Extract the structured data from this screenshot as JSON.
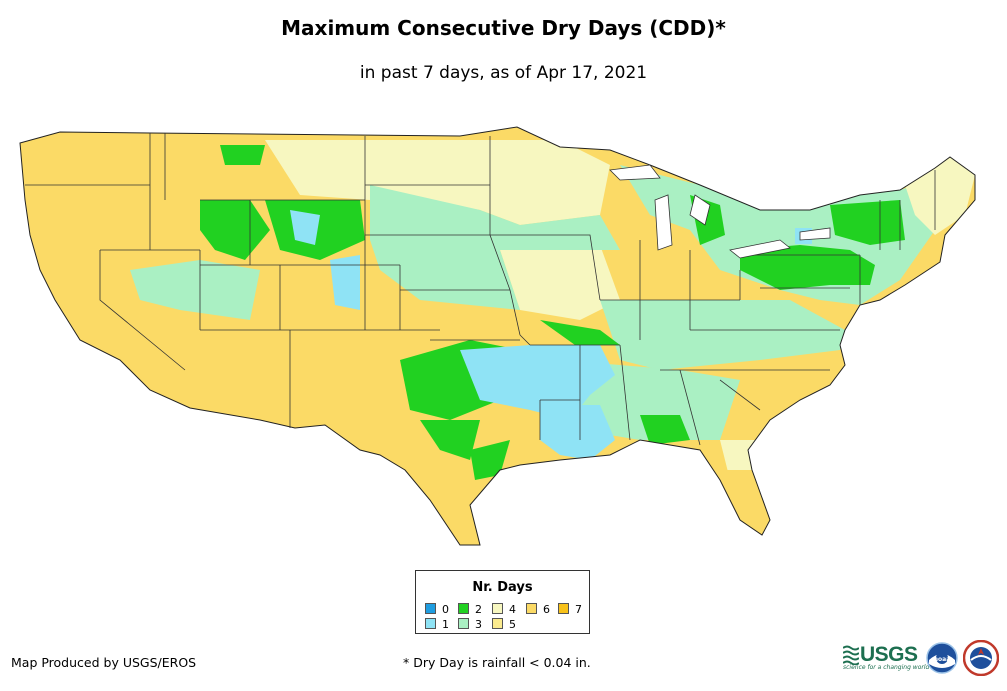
{
  "header": {
    "title": "Maximum Consecutive Dry Days (CDD)*",
    "subtitle": "in past 7 days, as of Apr 17, 2021"
  },
  "legend": {
    "title": "Nr. Days",
    "items": [
      {
        "label": "0",
        "color": "#1f9de0"
      },
      {
        "label": "1",
        "color": "#8fe3f5"
      },
      {
        "label": "2",
        "color": "#21d121"
      },
      {
        "label": "3",
        "color": "#aaf0c3"
      },
      {
        "label": "4",
        "color": "#f7f7c0"
      },
      {
        "label": "5",
        "color": "#fbeb8e"
      },
      {
        "label": "6",
        "color": "#fbda66"
      },
      {
        "label": "7",
        "color": "#f8c21a"
      }
    ]
  },
  "footer": {
    "credit": "Map Produced by USGS/EROS",
    "footnote": "* Dry Day is rainfall < 0.04 in."
  },
  "logos": {
    "usgs_word": "USGS",
    "usgs_tagline": "science for a changing world",
    "noaa_word": "noaa"
  }
}
